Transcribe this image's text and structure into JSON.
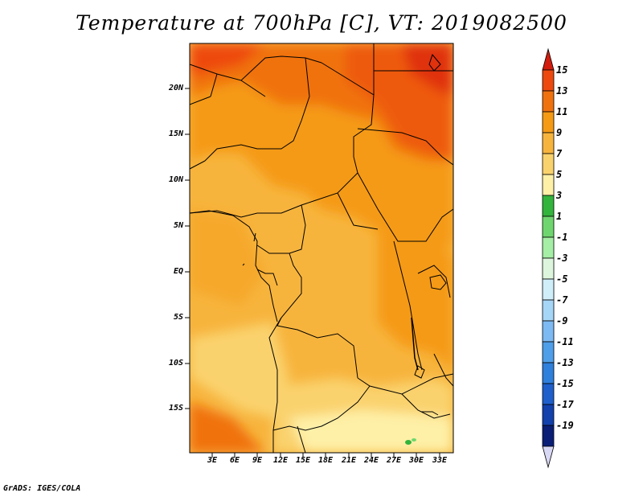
{
  "title": "Temperature at 700hPa [C], VT: 2019082500",
  "footer": "GrADS: IGES/COLA",
  "map": {
    "lat_labels": [
      "20N",
      "15N",
      "10N",
      "5N",
      "EQ",
      "5S",
      "10S",
      "15S"
    ],
    "lon_labels": [
      "3E",
      "6E",
      "9E",
      "12E",
      "15E",
      "18E",
      "21E",
      "24E",
      "27E",
      "30E",
      "33E"
    ]
  },
  "colorbar": {
    "labels": [
      "15",
      "13",
      "11",
      "9",
      "7",
      "5",
      "3",
      "1",
      "-1",
      "-3",
      "-5",
      "-7",
      "-9",
      "-11",
      "-13",
      "-15",
      "-17",
      "-19"
    ],
    "colors": [
      "#d21d0e",
      "#ee4a0f",
      "#f0720f",
      "#f59a14",
      "#f7b43d",
      "#fad26d",
      "#fef0a7",
      "#33b43c",
      "#6fd66f",
      "#a5eea5",
      "#dcf5dc",
      "#d0eefa",
      "#a6d6f7",
      "#7dbaf3",
      "#4f9ee9",
      "#2f7fdc",
      "#1e5fcc",
      "#1240ad",
      "#0a1e78",
      "#d8d8f5"
    ]
  }
}
